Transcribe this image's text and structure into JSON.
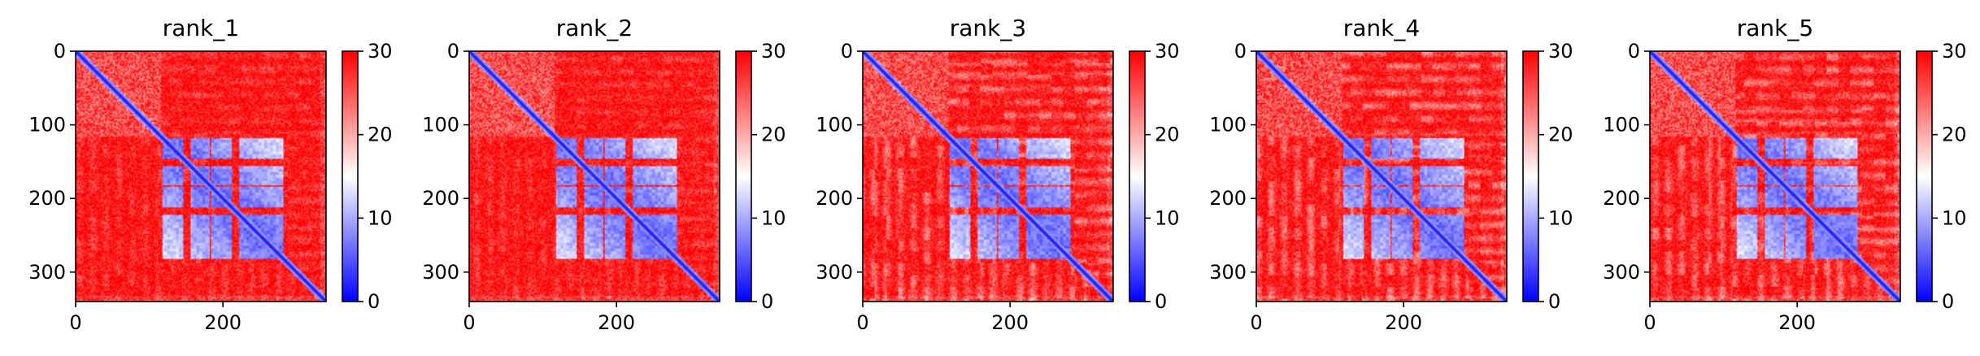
{
  "chart_data": {
    "type": "heatmap",
    "colormap": [
      "#0000ff",
      "#ffffff",
      "#ff0000"
    ],
    "clim": [
      0,
      30
    ],
    "colorbar_ticks": [
      0,
      10,
      20,
      30
    ],
    "x_ticks": [
      0,
      200
    ],
    "y_ticks": [
      0,
      100,
      200,
      300
    ],
    "xlim": [
      0,
      340
    ],
    "ylim": [
      340,
      0
    ],
    "domain_blocks": [
      [
        118,
        145
      ],
      [
        155,
        180
      ],
      [
        184,
        210
      ],
      [
        222,
        280
      ],
      [
        340,
        345
      ]
    ],
    "panels": [
      {
        "title": "rank_1",
        "variant": 0
      },
      {
        "title": "rank_2",
        "variant": 1
      },
      {
        "title": "rank_3",
        "variant": 2
      },
      {
        "title": "rank_4",
        "variant": 3
      },
      {
        "title": "rank_5",
        "variant": 4
      }
    ]
  }
}
